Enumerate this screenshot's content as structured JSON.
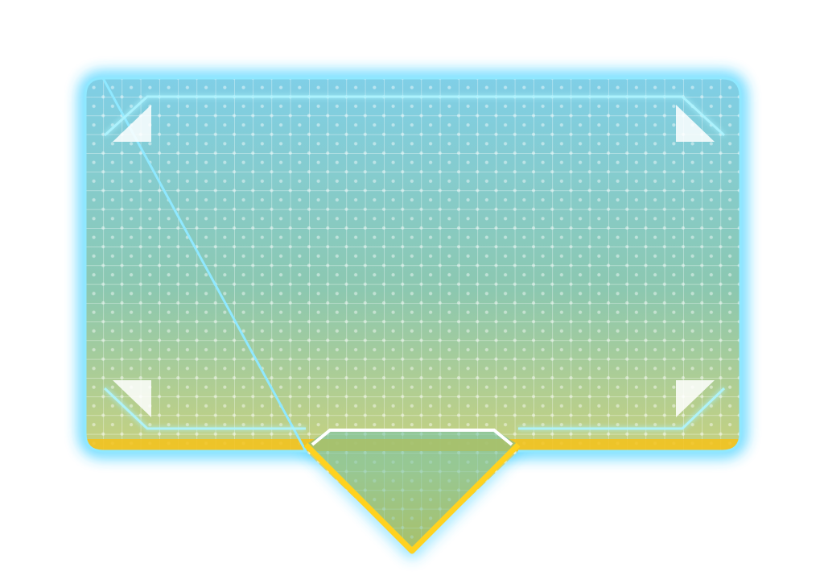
{
  "panel": {
    "kind": "speech-bubble-panel",
    "text": "",
    "colors": {
      "background": "#ffffff",
      "glow": "#33ccff",
      "outline": "#8fe8ff",
      "gradient_top": "#7fcfe8",
      "gradient_mid": "#8cc8b0",
      "gradient_low": "#cdd27a",
      "gradient_bottom": "#f5c21a",
      "pointer_fill": "#6cc0a8",
      "pointer_border": "#ffd21f",
      "pointer_inner_line": "#ffffff",
      "inner_frame_line": "#aef4ff",
      "grid_line": "#ffffff",
      "dot": "#ffffff",
      "corner_marker": "#ffffff"
    },
    "icons": {
      "corner_markers": [
        "corner-triangle-top-left-icon",
        "corner-triangle-top-right-icon",
        "corner-triangle-bottom-left-icon",
        "corner-triangle-bottom-right-icon"
      ],
      "pointer": "downward-pointer-icon"
    }
  }
}
